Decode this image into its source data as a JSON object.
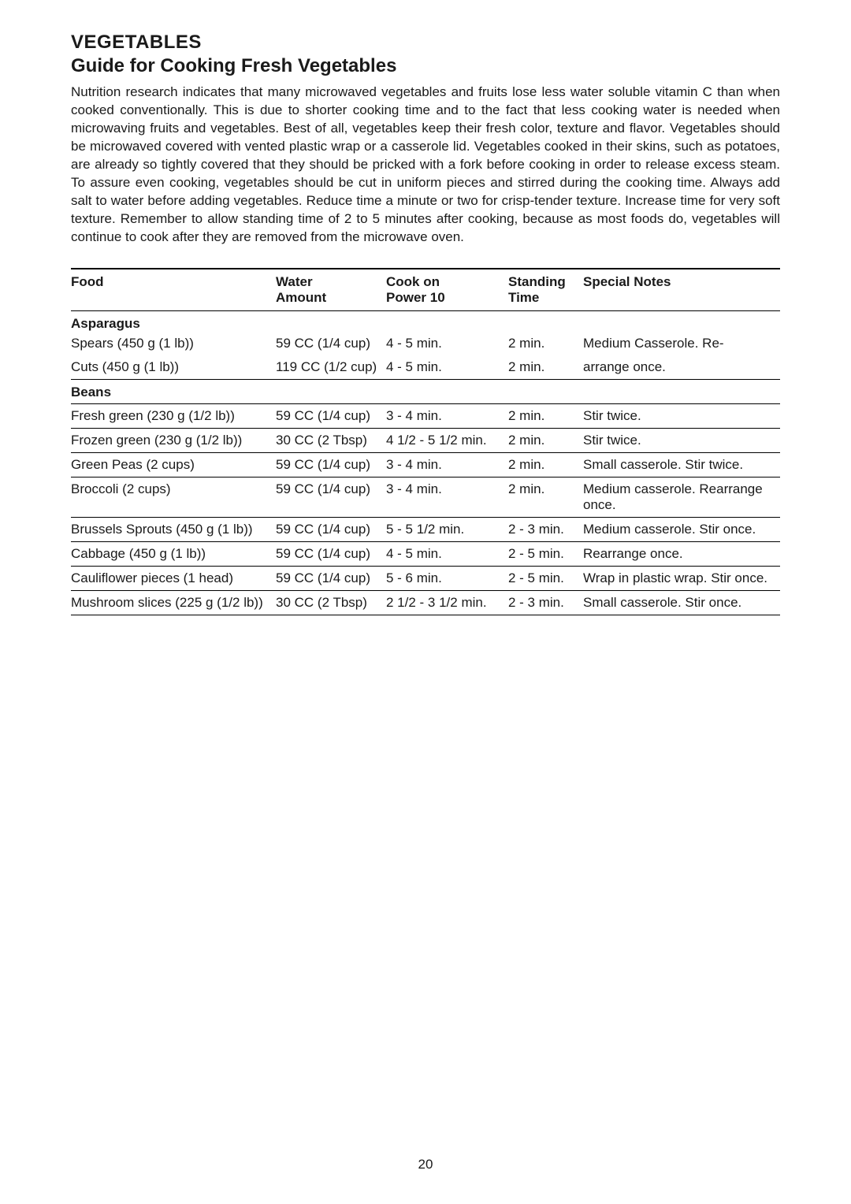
{
  "title_1": "VEGETABLES",
  "title_2": "Guide for Cooking Fresh Vegetables",
  "intro": "Nutrition research indicates that many microwaved vegetables and fruits lose less water soluble vitamin C than when cooked conventionally. This is due to shorter cooking time and to the fact that less cooking water is needed when microwaving fruits and vegetables. Best of all, vegetables keep their fresh color, texture and flavor. Vegetables should be microwaved covered with vented plastic wrap or a casserole lid. Vegetables cooked in their skins, such as potatoes, are already so tightly covered that they should be pricked with a fork before cooking in order to release excess steam. To assure even cooking, vegetables should be cut in uniform pieces and stirred during the cooking time. Always add salt to water before adding vegetables. Reduce time a minute or two for crisp-tender texture. Increase time for very soft texture. Remember to allow standing time of 2 to 5 minutes after cooking, because as most foods do, vegetables will continue to cook after they are removed from the microwave oven.",
  "headers": {
    "food": "Food",
    "water_1": "Water",
    "water_2": "Amount",
    "cook_1": "Cook on",
    "cook_2": "Power 10",
    "standing_1": "Standing",
    "standing_2": "Time",
    "notes": "Special Notes"
  },
  "sections": {
    "asparagus": "Asparagus",
    "beans": "Beans"
  },
  "rows": {
    "r0": {
      "food": "Spears (450 g (1 lb))",
      "water": "59 CC (1/4 cup)",
      "cook": "4 - 5 min.",
      "stand": "2 min.",
      "notes": "Medium Casserole. Re-"
    },
    "r1": {
      "food": "Cuts (450 g (1 lb))",
      "water": "119 CC (1/2 cup)",
      "cook": "4 - 5 min.",
      "stand": "2 min.",
      "notes": "arrange once."
    },
    "r2": {
      "food": "Fresh green (230 g (1/2 lb))",
      "water": "59 CC (1/4 cup)",
      "cook": "3 - 4 min.",
      "stand": "2 min.",
      "notes": "Stir twice."
    },
    "r3": {
      "food": "Frozen green (230 g (1/2 lb))",
      "water": "30 CC (2 Tbsp)",
      "cook": "4 1/2 - 5 1/2 min.",
      "stand": "2 min.",
      "notes": "Stir twice."
    },
    "r4": {
      "food": "Green Peas (2 cups)",
      "water": "59 CC (1/4 cup)",
      "cook": "3 - 4 min.",
      "stand": "2 min.",
      "notes": "Small casserole. Stir twice."
    },
    "r5": {
      "food": "Broccoli (2 cups)",
      "water": "59 CC (1/4 cup)",
      "cook": "3 - 4 min.",
      "stand": "2 min.",
      "notes": "Medium casserole. Rearrange once."
    },
    "r6": {
      "food": "Brussels Sprouts (450 g (1 lb))",
      "water": "59 CC (1/4 cup)",
      "cook": "5 - 5 1/2 min.",
      "stand": "2 - 3 min.",
      "notes": "Medium casserole. Stir once."
    },
    "r7": {
      "food": "Cabbage (450 g (1 lb))",
      "water": "59 CC (1/4 cup)",
      "cook": "4 - 5 min.",
      "stand": "2 - 5 min.",
      "notes": "Rearrange once."
    },
    "r8": {
      "food": "Cauliflower pieces (1 head)",
      "water": "59 CC (1/4 cup)",
      "cook": "5 - 6 min.",
      "stand": "2 - 5 min.",
      "notes": "Wrap in plastic wrap. Stir once."
    },
    "r9": {
      "food": "Mushroom slices (225 g (1/2 lb))",
      "water": "30 CC (2 Tbsp)",
      "cook": "2 1/2 - 3 1/2 min.",
      "stand": "2 - 3 min.",
      "notes": "Small casserole. Stir once."
    }
  },
  "page_number": "20"
}
